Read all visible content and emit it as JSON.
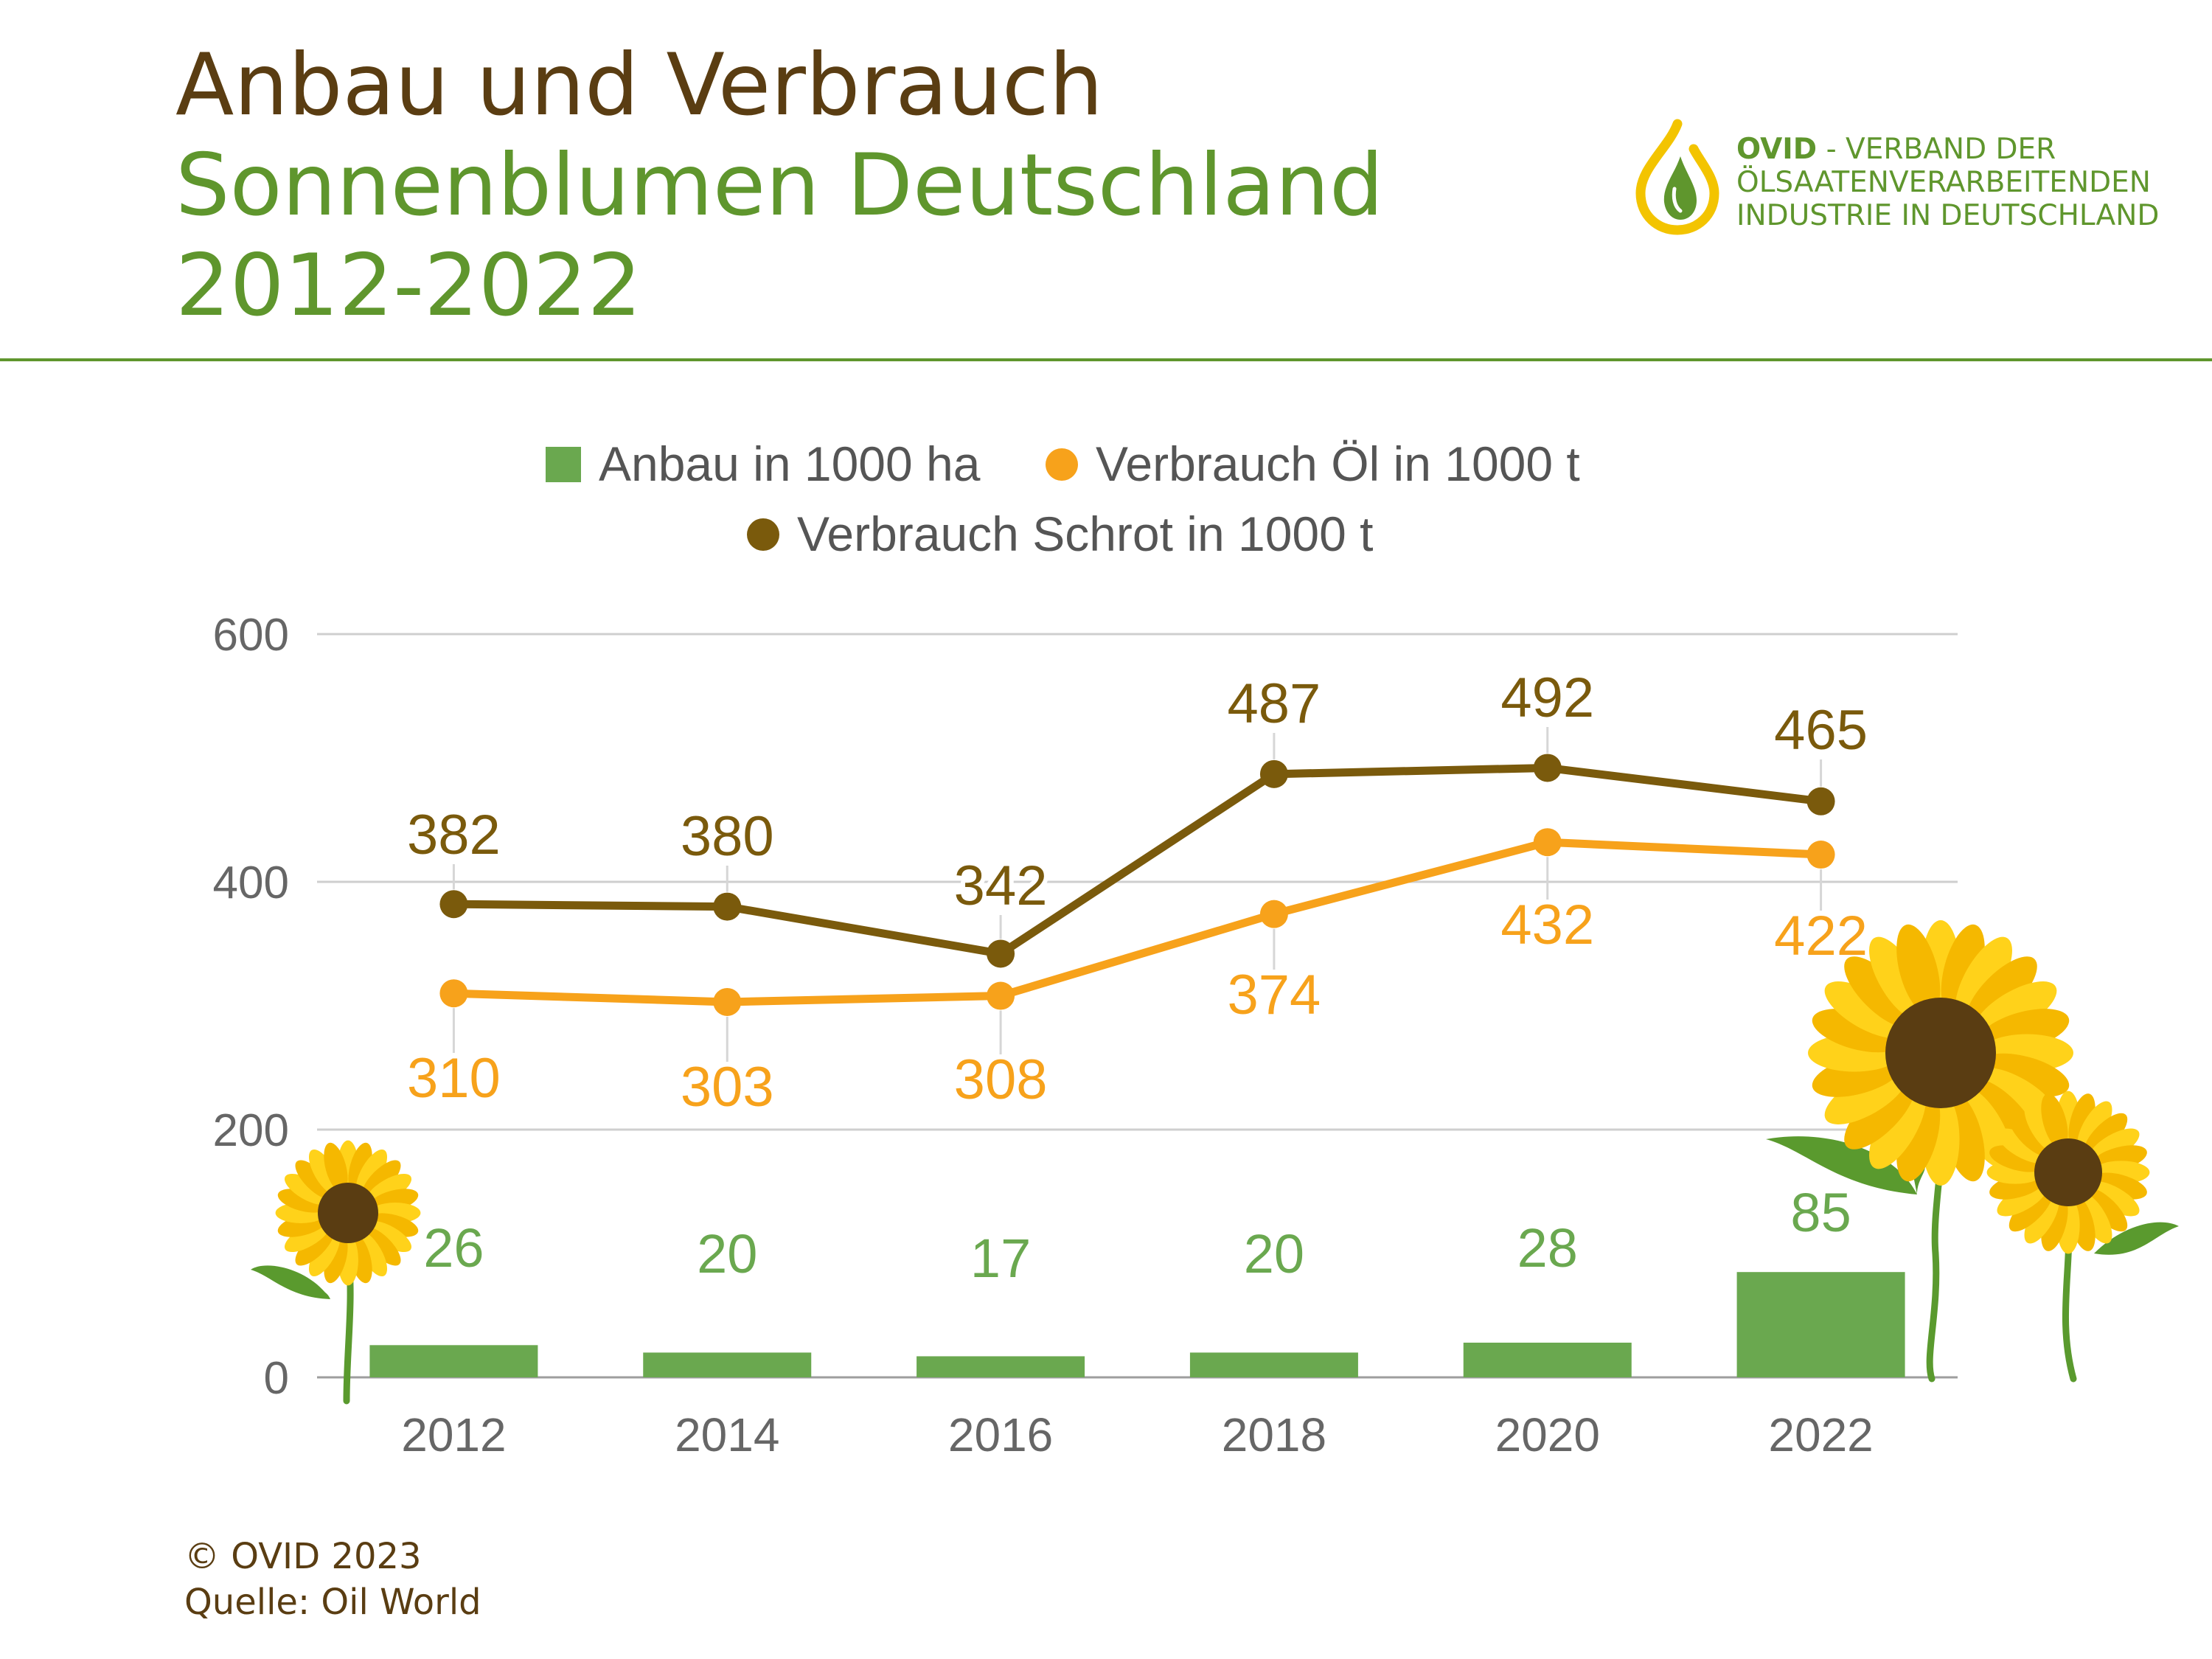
{
  "header": {
    "title_line1": "Anbau und Verbrauch",
    "title_line2": "Sonnenblumen Deutschland",
    "title_line3": "2012-2022"
  },
  "logo": {
    "brand": "OVID",
    "line1_rest": " - VERBAND DER",
    "line2": "ÖLSAATENVERARBEITENDEN",
    "line3": "INDUSTRIE IN DEUTSCHLAND",
    "colors": {
      "green": "#5f962d",
      "yellow": "#f3c400"
    }
  },
  "footer": {
    "copyright": "© OVID 2023",
    "source": "Quelle: Oil World"
  },
  "chart_data": {
    "type": "bar",
    "categories": [
      "2012",
      "2014",
      "2016",
      "2018",
      "2020",
      "2022"
    ],
    "ylim": [
      0,
      600
    ],
    "yticks": [
      0,
      200,
      400,
      600
    ],
    "grid": true,
    "legend_position": "top",
    "series": [
      {
        "name": "Anbau in 1000 ha",
        "type": "bar",
        "color": "#6aa84f",
        "values": [
          26,
          20,
          17,
          20,
          28,
          85
        ]
      },
      {
        "name": "Verbrauch Öl in 1000 t",
        "type": "line",
        "color": "#f7a21b",
        "values": [
          310,
          303,
          308,
          374,
          432,
          422
        ]
      },
      {
        "name": "Verbrauch Schrot in 1000 t",
        "type": "line",
        "color": "#7a5a0c",
        "values": [
          382,
          380,
          342,
          487,
          492,
          465
        ]
      }
    ]
  }
}
